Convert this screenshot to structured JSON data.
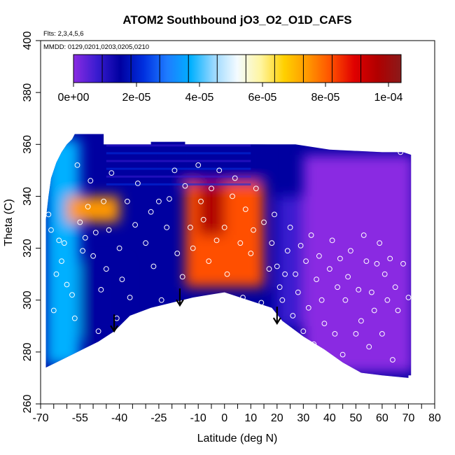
{
  "chart_data": {
    "type": "heatmap",
    "title": "ATOM2 Southbound jO3_O2_O1D_CAFS",
    "flights_note": "Flts: 2,3,4,5,6",
    "dates_note": "MMDD: 0129,0201,0203,0205,0210",
    "xlabel": "Latitude (deg N)",
    "ylabel": "Theta (C)",
    "xlim": [
      -70,
      80
    ],
    "ylim": [
      260,
      400
    ],
    "x_ticks": [
      -70,
      -55,
      -40,
      -25,
      -10,
      0,
      10,
      20,
      30,
      40,
      50,
      60,
      70,
      80
    ],
    "x_tick_labels": [
      "-70",
      "-55",
      "-40",
      "-25",
      "-10",
      "0",
      "10",
      "20",
      "30",
      "40",
      "50",
      "60",
      "70",
      "80"
    ],
    "x_minor_ticks": [
      -65,
      -60,
      -50,
      -45,
      -35,
      -30,
      -20,
      -15,
      -5,
      5,
      15,
      25,
      35,
      45,
      55,
      65,
      75
    ],
    "y_ticks": [
      260,
      280,
      300,
      320,
      340,
      360,
      380,
      400
    ],
    "y_tick_labels": [
      "260",
      "280",
      "300",
      "320",
      "340",
      "360",
      "380",
      "400"
    ],
    "colorbar": {
      "min": 0,
      "max": 0.000104,
      "ticks": [
        0,
        2e-05,
        4e-05,
        6e-05,
        8e-05,
        0.0001
      ],
      "tick_labels": [
        "0e+00",
        "2e-05",
        "4e-05",
        "6e-05",
        "8e-05",
        "1e-04"
      ],
      "colors": [
        "#8a2be2",
        "#3a1cd0",
        "#0000a0",
        "#0030e0",
        "#1e7cff",
        "#00b0ff",
        "#9ad8ff",
        "#f4fbff",
        "#fff5a0",
        "#ffd000",
        "#ff9800",
        "#ff5000",
        "#e00000",
        "#b00000",
        "#8a1a1a"
      ]
    },
    "tropopause_arrows": [
      {
        "lat": -42,
        "theta": 288
      },
      {
        "lat": -17,
        "theta": 298
      },
      {
        "lat": 20,
        "theta": 291
      }
    ],
    "fields": [
      {
        "region": "southern edge",
        "lat_range": [
          -68,
          -55
        ],
        "theta_range": [
          275,
          362
        ],
        "value": 3.6e-05
      },
      {
        "region": "southern subtropics low",
        "lat_range": [
          -55,
          -38
        ],
        "theta_range": [
          285,
          315
        ],
        "value": 1.8e-05
      },
      {
        "region": "southern subtropics high",
        "lat_range": [
          -60,
          -40
        ],
        "theta_range": [
          330,
          340
        ],
        "value": 7.5e-05
      },
      {
        "region": "tropics upper troposphere",
        "lat_range": [
          -15,
          15
        ],
        "theta_range": [
          305,
          345
        ],
        "value": 8.2e-05
      },
      {
        "region": "tropics core maximum",
        "lat_range": [
          -10,
          0
        ],
        "theta_range": [
          325,
          345
        ],
        "value": 9.8e-05
      },
      {
        "region": "tropical tropopause layer",
        "lat_range": [
          -20,
          15
        ],
        "theta_range": [
          345,
          362
        ],
        "value": 1.2e-05
      },
      {
        "region": "northern subtropics",
        "lat_range": [
          20,
          30
        ],
        "theta_range": [
          290,
          340
        ],
        "value": 6e-06
      },
      {
        "region": "northern midlatitudes",
        "lat_range": [
          30,
          72
        ],
        "theta_range": [
          272,
          356
        ],
        "value": 2e-06
      }
    ],
    "obs_points": [
      [
        -67,
        333
      ],
      [
        -66,
        327
      ],
      [
        -65,
        296
      ],
      [
        -64,
        310
      ],
      [
        -63,
        323
      ],
      [
        -62,
        315
      ],
      [
        -61,
        322
      ],
      [
        -60,
        306
      ],
      [
        -58,
        302
      ],
      [
        -57,
        293
      ],
      [
        -56,
        352
      ],
      [
        -55,
        330
      ],
      [
        -54,
        319
      ],
      [
        -53,
        324
      ],
      [
        -52,
        336
      ],
      [
        -51,
        346
      ],
      [
        -50,
        317
      ],
      [
        -49,
        326
      ],
      [
        -48,
        288
      ],
      [
        -47,
        304
      ],
      [
        -46,
        338
      ],
      [
        -45,
        312
      ],
      [
        -44,
        327
      ],
      [
        -43,
        349
      ],
      [
        -41,
        293
      ],
      [
        -40,
        320
      ],
      [
        -39,
        308
      ],
      [
        -37,
        338
      ],
      [
        -36,
        301
      ],
      [
        -34,
        329
      ],
      [
        -33,
        345
      ],
      [
        -31,
        292
      ],
      [
        -30,
        322
      ],
      [
        -28,
        334
      ],
      [
        -27,
        313
      ],
      [
        -25,
        338
      ],
      [
        -24,
        300
      ],
      [
        -22,
        328
      ],
      [
        -21,
        339
      ],
      [
        -19,
        350
      ],
      [
        -18,
        318
      ],
      [
        -16,
        309
      ],
      [
        -15,
        344
      ],
      [
        -13,
        328
      ],
      [
        -12,
        320
      ],
      [
        -10,
        352
      ],
      [
        -9,
        338
      ],
      [
        -8,
        331
      ],
      [
        -6,
        315
      ],
      [
        -5,
        343
      ],
      [
        -3,
        323
      ],
      [
        -2,
        350
      ],
      [
        0,
        328
      ],
      [
        1,
        310
      ],
      [
        3,
        340
      ],
      [
        4,
        347
      ],
      [
        6,
        322
      ],
      [
        7,
        301
      ],
      [
        8,
        335
      ],
      [
        10,
        318
      ],
      [
        11,
        327
      ],
      [
        12,
        343
      ],
      [
        14,
        299
      ],
      [
        15,
        330
      ],
      [
        17,
        312
      ],
      [
        18,
        322
      ],
      [
        19,
        333
      ],
      [
        20,
        313
      ],
      [
        21,
        305
      ],
      [
        22,
        300
      ],
      [
        23,
        310
      ],
      [
        24,
        319
      ],
      [
        25,
        328
      ],
      [
        26,
        294
      ],
      [
        27,
        310
      ],
      [
        28,
        303
      ],
      [
        29,
        321
      ],
      [
        30,
        288
      ],
      [
        31,
        315
      ],
      [
        32,
        297
      ],
      [
        33,
        325
      ],
      [
        34,
        283
      ],
      [
        35,
        308
      ],
      [
        36,
        317
      ],
      [
        37,
        300
      ],
      [
        38,
        291
      ],
      [
        40,
        312
      ],
      [
        41,
        323
      ],
      [
        42,
        287
      ],
      [
        43,
        305
      ],
      [
        44,
        316
      ],
      [
        45,
        279
      ],
      [
        46,
        300
      ],
      [
        47,
        309
      ],
      [
        48,
        319
      ],
      [
        50,
        287
      ],
      [
        51,
        304
      ],
      [
        52,
        292
      ],
      [
        53,
        325
      ],
      [
        54,
        315
      ],
      [
        55,
        282
      ],
      [
        56,
        303
      ],
      [
        57,
        296
      ],
      [
        58,
        314
      ],
      [
        59,
        322
      ],
      [
        60,
        287
      ],
      [
        61,
        310
      ],
      [
        62,
        300
      ],
      [
        63,
        316
      ],
      [
        64,
        277
      ],
      [
        65,
        305
      ],
      [
        66,
        296
      ],
      [
        67,
        357
      ],
      [
        68,
        314
      ],
      [
        70,
        301
      ]
    ]
  }
}
